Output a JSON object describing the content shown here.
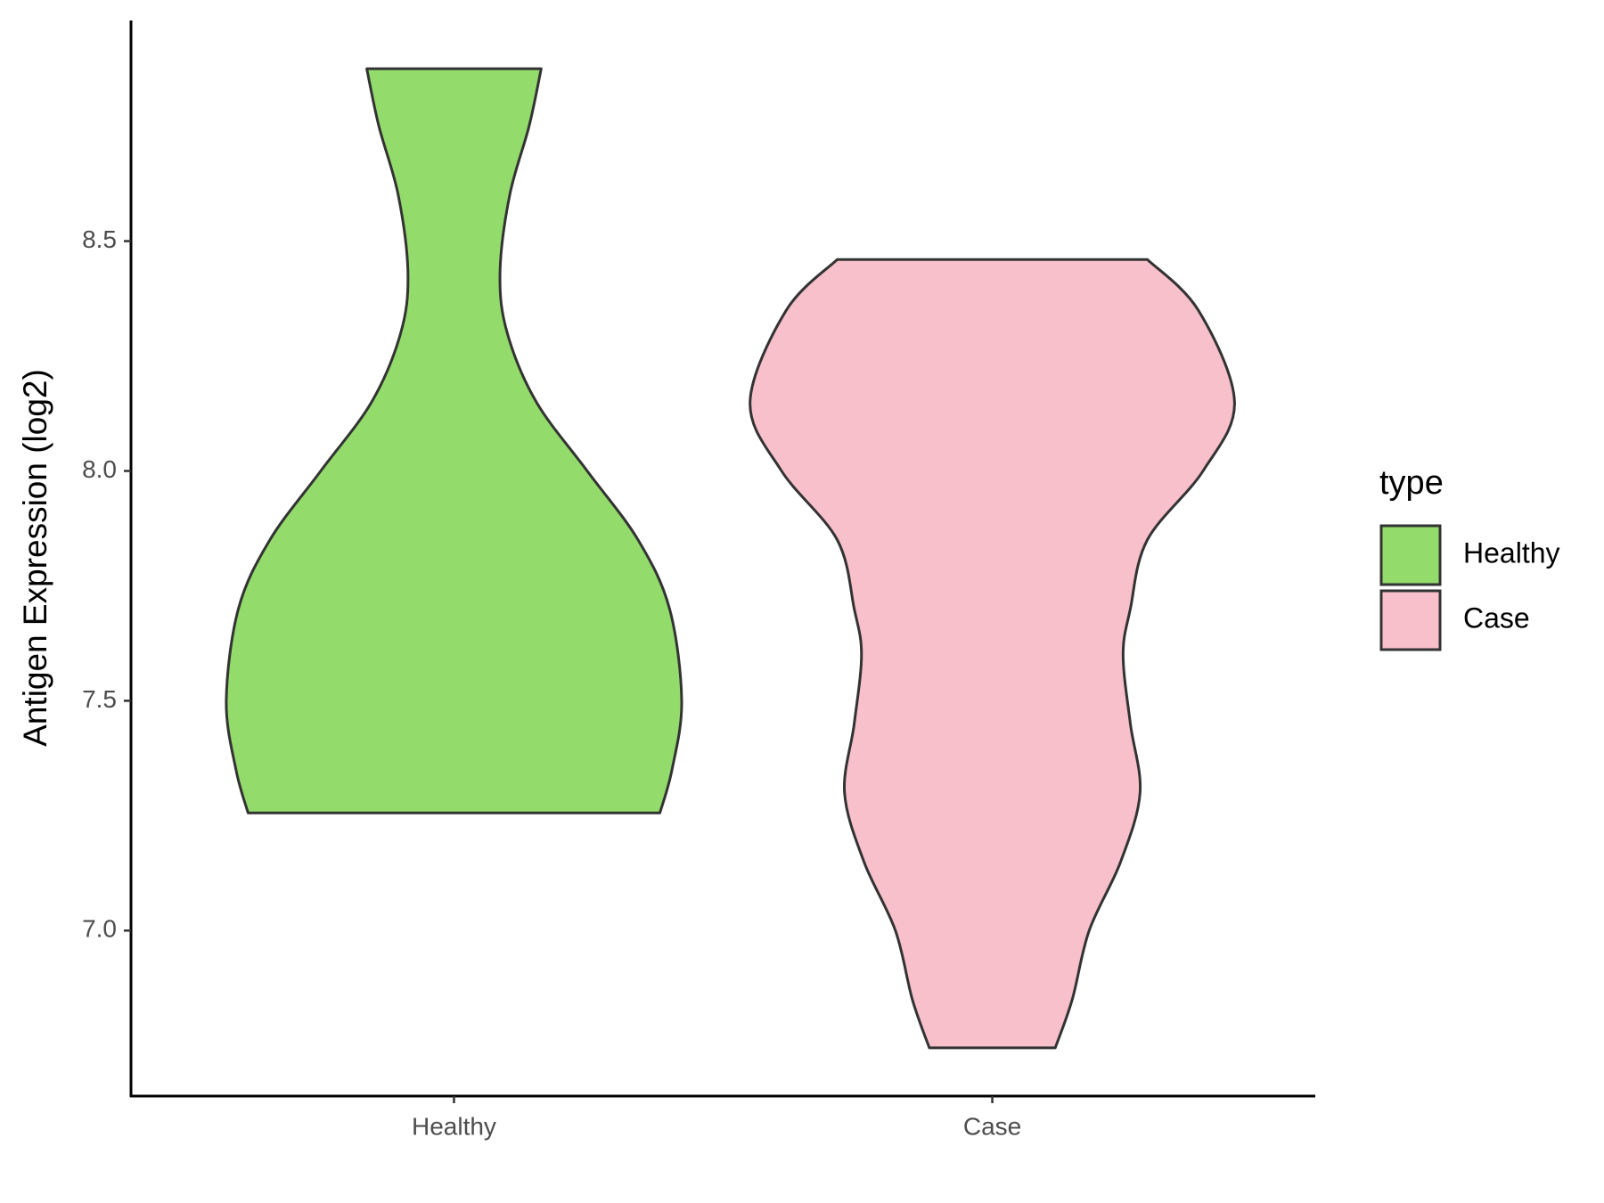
{
  "chart_data": {
    "type": "violin",
    "y_label": "Antigen Expression (log2)",
    "categories": [
      "Healthy",
      "Case"
    ],
    "legend_title": "type",
    "legend_position": "right",
    "ylim": [
      6.64,
      8.98
    ],
    "yticks": [
      {
        "value": 7,
        "label": "7.0"
      },
      {
        "value": 7.5,
        "label": "7.5"
      },
      {
        "value": 8,
        "label": "8.0"
      },
      {
        "value": 8.5,
        "label": "8.5"
      }
    ],
    "series": [
      {
        "name": "Healthy",
        "color": "#93dc6b",
        "y": [
          8.875,
          8.75,
          8.6,
          8.43,
          8.3,
          8.15,
          8.0,
          7.85,
          7.7,
          7.5,
          7.35,
          7.256
        ],
        "density": [
          0.36,
          0.31,
          0.23,
          0.19,
          0.22,
          0.34,
          0.55,
          0.76,
          0.89,
          0.94,
          0.9,
          0.85
        ]
      },
      {
        "name": "Case",
        "color": "#f7c0cb",
        "y": [
          8.46,
          8.35,
          8.15,
          8.0,
          7.85,
          7.7,
          7.6,
          7.45,
          7.3,
          7.15,
          7.0,
          6.85,
          6.745
        ],
        "density": [
          0.64,
          0.85,
          1.0,
          0.87,
          0.64,
          0.57,
          0.54,
          0.57,
          0.61,
          0.53,
          0.4,
          0.33,
          0.26
        ]
      }
    ]
  }
}
